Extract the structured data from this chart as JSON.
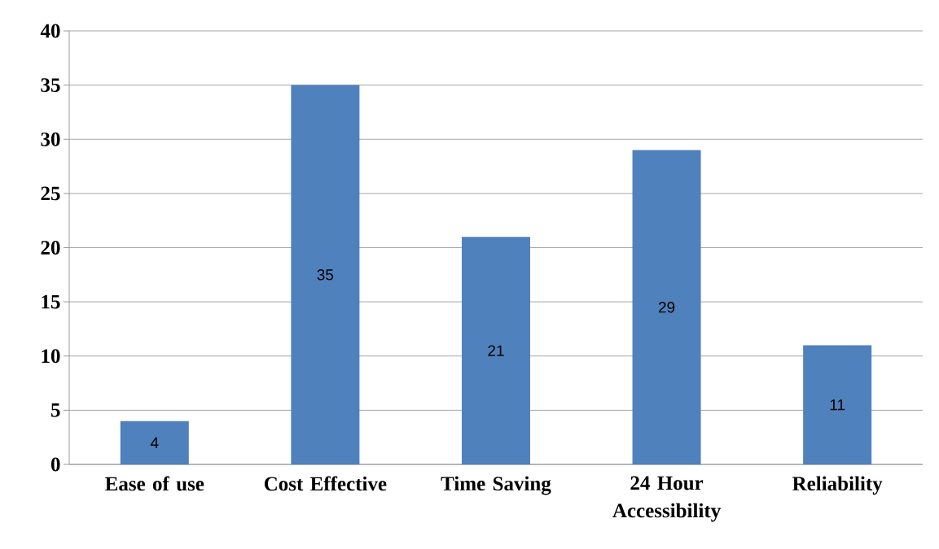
{
  "chart_data": {
    "type": "bar",
    "categories": [
      "Ease of use",
      "Cost Effective",
      "Time Saving",
      "24 Hour Accessibility",
      "Reliability"
    ],
    "values": [
      4,
      35,
      21,
      29,
      11
    ],
    "color": "#4f81bd",
    "ylim": [
      0,
      40
    ],
    "yticks": [
      0,
      5,
      10,
      15,
      20,
      25,
      30,
      35,
      40
    ],
    "grid": "y",
    "data_labels": true
  }
}
